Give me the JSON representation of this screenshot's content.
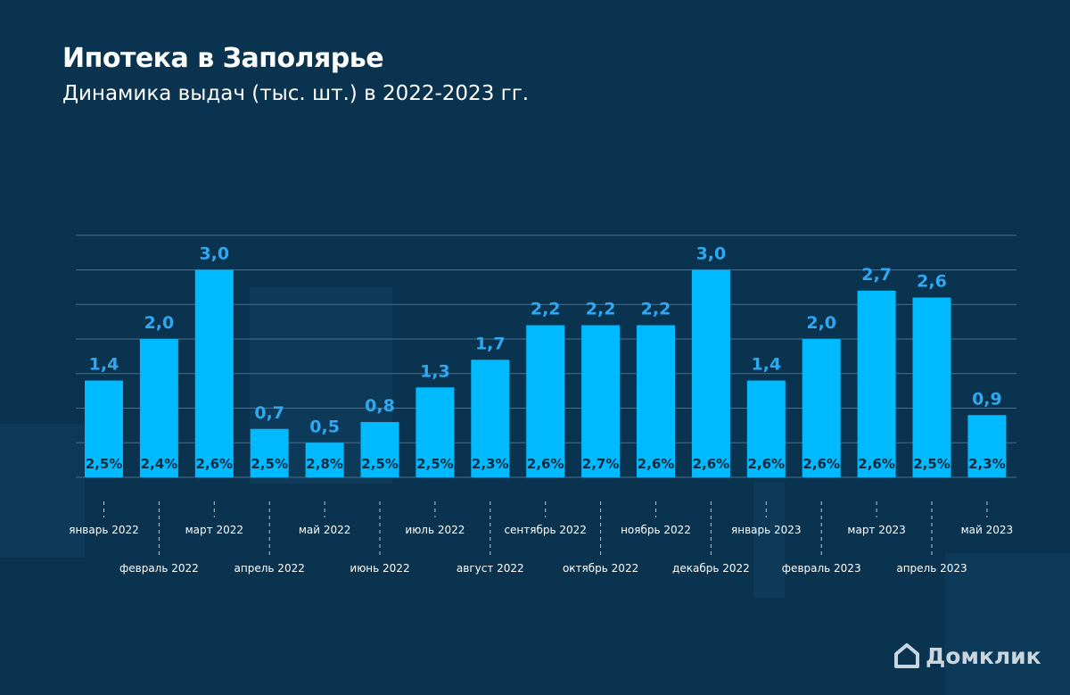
{
  "title": "Ипотека в Заполярье",
  "subtitle": "Динамика выдач (тыс. шт.) в 2022-2023 гг.",
  "brand": "Домклик",
  "colors": {
    "background": "#0a3350",
    "bar": "#00baff",
    "value_label": "#2fa8f0",
    "grid": "#4a6f8a",
    "axis_label": "#ffffff",
    "pct_label": "#0a2a40"
  },
  "chart_data": {
    "type": "bar",
    "categories": [
      "январь 2022",
      "февраль 2022",
      "март 2022",
      "апрель 2022",
      "май 2022",
      "июнь 2022",
      "июль 2022",
      "август 2022",
      "сентябрь 2022",
      "октябрь 2022",
      "ноябрь 2022",
      "декабрь 2022",
      "январь 2023",
      "февраль 2023",
      "март 2023",
      "апрель 2023",
      "май 2023"
    ],
    "values": [
      1.4,
      2.0,
      3.0,
      0.7,
      0.5,
      0.8,
      1.3,
      1.7,
      2.2,
      2.2,
      2.2,
      3.0,
      1.4,
      2.0,
      2.7,
      2.6,
      0.9
    ],
    "value_labels": [
      "1,4",
      "2,0",
      "3,0",
      "0,7",
      "0,5",
      "0,8",
      "1,3",
      "1,7",
      "2,2",
      "2,2",
      "2,2",
      "3,0",
      "1,4",
      "2,0",
      "2,7",
      "2,6",
      "0,9"
    ],
    "pct_labels": [
      "2,5%",
      "2,4%",
      "2,6%",
      "2,5%",
      "2,8%",
      "2,5%",
      "2,5%",
      "2,3%",
      "2,6%",
      "2,7%",
      "2,6%",
      "2,6%",
      "2,6%",
      "2,6%",
      "2,6%",
      "2,5%",
      "2,3%"
    ],
    "ylim": [
      0,
      3.5
    ],
    "grid": true,
    "xlabel": "",
    "ylabel": ""
  }
}
